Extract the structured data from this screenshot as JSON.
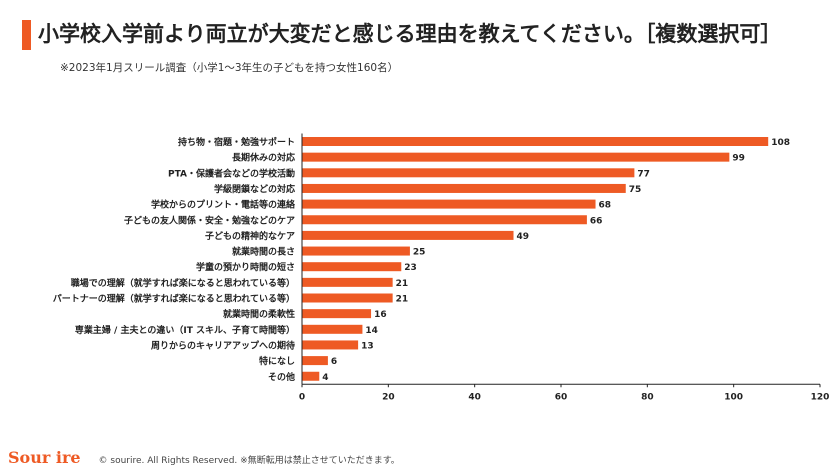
{
  "header": {
    "title": "小学校入学前より両立が大変だと感じる理由を教えてください。［複数選択可］",
    "subtitle": "※2023年1月スリール調査（小学1〜3年生の子どもを持つ女性160名）"
  },
  "footer": {
    "logo": "Sour ire",
    "copyright": "© sourire. All Rights Reserved. ※無断転用は禁止させていただきます。"
  },
  "colors": {
    "bar": "#ee5a24",
    "accent": "#ee5a24",
    "axis": "#222222"
  },
  "chart_data": {
    "type": "bar",
    "orientation": "horizontal",
    "categories": [
      "持ち物・宿題・勉強サポート",
      "長期休みの対応",
      "PTA・保護者会などの学校活動",
      "学級閉鎖などの対応",
      "学校からのプリント・電話等の連絡",
      "子どもの友人関係・安全・勉強などのケア",
      "子どもの精神的なケア",
      "就業時間の長さ",
      "学童の預かり時間の短さ",
      "職場での理解（就学すれば楽になると思われている等）",
      "パートナーの理解（就学すれば楽になると思われている等）",
      "就業時間の柔軟性",
      "専業主婦 / 主夫との違い（IT スキル、子育て時間等）",
      "周りからのキャリアアップへの期待",
      "特になし",
      "その他"
    ],
    "values": [
      108,
      99,
      77,
      75,
      68,
      66,
      49,
      25,
      23,
      21,
      21,
      16,
      14,
      13,
      6,
      4
    ],
    "xlim": [
      0,
      120
    ],
    "xticks": [
      0,
      20,
      40,
      60,
      80,
      100,
      120
    ],
    "xlabel": "",
    "ylabel": "",
    "grid": false,
    "data_labels": true
  }
}
